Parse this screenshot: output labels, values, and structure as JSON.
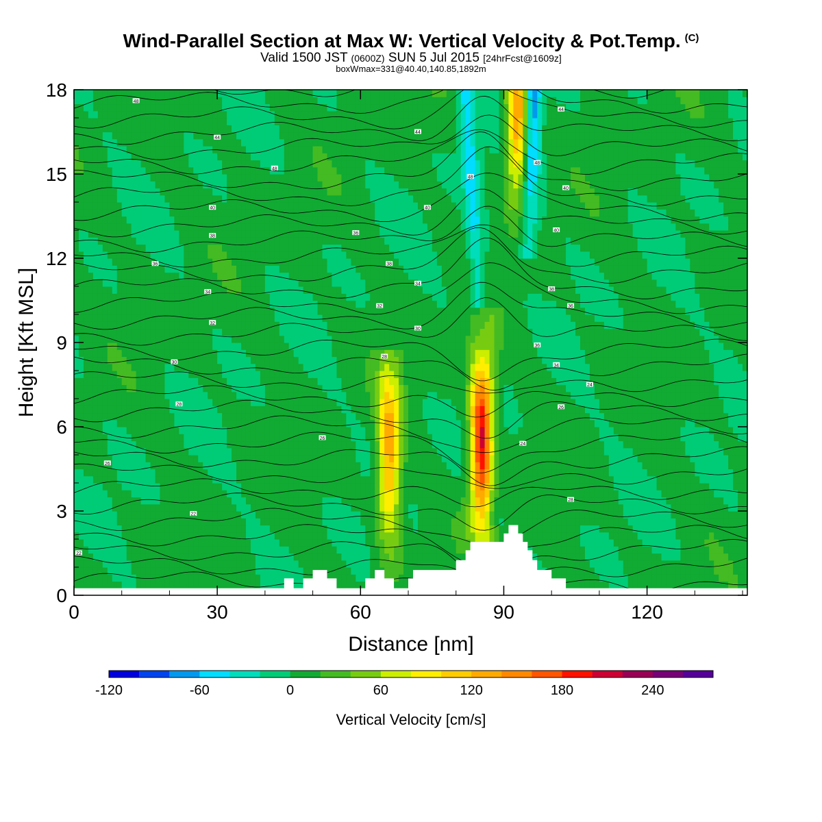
{
  "header": {
    "title": "Wind-Parallel Section at Max W: Vertical Velocity & Pot.Temp.",
    "copyright": "(C)",
    "subtitle_a": "Valid 1500 JST",
    "subtitle_b": "(0600Z)",
    "subtitle_c": "SUN 5 Jul 2015",
    "subtitle_d": "[24hrFcst@1609z]",
    "note": "boxWmax=331@40.40,140.85,1892m"
  },
  "chart_data": {
    "type": "heatmap",
    "xlabel": "Distance [nm]",
    "ylabel": "Height [Kft MSL]",
    "xlim": [
      0,
      141
    ],
    "ylim": [
      0,
      18
    ],
    "xticks": [
      0,
      30,
      60,
      90,
      120
    ],
    "yticks": [
      0,
      3,
      6,
      9,
      12,
      15,
      18
    ],
    "colorbar": {
      "label": "Vertical Velocity [cm/s]",
      "ticks": [
        -120,
        -60,
        0,
        60,
        120,
        180,
        240
      ],
      "min": -120,
      "max": 280,
      "step": 20,
      "colors": [
        "#0000dd",
        "#0044ee",
        "#0099ee",
        "#00ddff",
        "#00ddbb",
        "#00cc77",
        "#11aa33",
        "#44bb22",
        "#77cc11",
        "#ccee00",
        "#ffee00",
        "#ffcc00",
        "#ffaa00",
        "#ff8800",
        "#ff5500",
        "#ff1100",
        "#cc0033",
        "#990055",
        "#770077",
        "#550099"
      ]
    },
    "background_value": 5,
    "updrafts": [
      {
        "x": 66,
        "z_bottom": 1.0,
        "z_top": 8.0,
        "peak_z": 5.0,
        "max_w": 130
      },
      {
        "x": 85.5,
        "z_bottom": 2.0,
        "z_top": 9.5,
        "peak_z": 5.8,
        "max_w": 220
      },
      {
        "x": 93,
        "z_bottom": 12.0,
        "z_top": 18.0,
        "peak_z": 17.0,
        "max_w": 150
      }
    ],
    "downdrafts": [
      {
        "x_bottom": 88,
        "x_top": 82,
        "z_bottom": 2.5,
        "z_top": 18.0,
        "min_w": -60
      },
      {
        "x_bottom": 95,
        "x_top": 96,
        "z_bottom": 12.0,
        "z_top": 18.0,
        "min_w": -100
      }
    ],
    "theta_contour_labels": [
      {
        "x": 13,
        "z": 17.6,
        "label": "48"
      },
      {
        "x": 30,
        "z": 16.3,
        "label": "44"
      },
      {
        "x": 42,
        "z": 15.2,
        "label": "48"
      },
      {
        "x": 72,
        "z": 16.5,
        "label": "44"
      },
      {
        "x": 102,
        "z": 17.3,
        "label": "44"
      },
      {
        "x": 29,
        "z": 13.8,
        "label": "40"
      },
      {
        "x": 74,
        "z": 13.8,
        "label": "40"
      },
      {
        "x": 29,
        "z": 12.8,
        "label": "38"
      },
      {
        "x": 59,
        "z": 12.9,
        "label": "36"
      },
      {
        "x": 17,
        "z": 11.8,
        "label": "36"
      },
      {
        "x": 66,
        "z": 11.8,
        "label": "38"
      },
      {
        "x": 28,
        "z": 10.8,
        "label": "34"
      },
      {
        "x": 72,
        "z": 11.1,
        "label": "34"
      },
      {
        "x": 64,
        "z": 10.3,
        "label": "32"
      },
      {
        "x": 29,
        "z": 9.7,
        "label": "32"
      },
      {
        "x": 72,
        "z": 9.5,
        "label": "30"
      },
      {
        "x": 21,
        "z": 8.3,
        "label": "30"
      },
      {
        "x": 65,
        "z": 8.5,
        "label": "28"
      },
      {
        "x": 22,
        "z": 6.8,
        "label": "28"
      },
      {
        "x": 52,
        "z": 5.6,
        "label": "26"
      },
      {
        "x": 7,
        "z": 4.7,
        "label": "26"
      },
      {
        "x": 25,
        "z": 2.9,
        "label": "22"
      },
      {
        "x": 1,
        "z": 1.5,
        "label": "22"
      },
      {
        "x": 97,
        "z": 8.9,
        "label": "36"
      },
      {
        "x": 101,
        "z": 8.2,
        "label": "34"
      },
      {
        "x": 108,
        "z": 7.5,
        "label": "24"
      },
      {
        "x": 102,
        "z": 6.7,
        "label": "26"
      },
      {
        "x": 104,
        "z": 3.4,
        "label": "28"
      },
      {
        "x": 104,
        "z": 10.3,
        "label": "36"
      },
      {
        "x": 100,
        "z": 10.9,
        "label": "38"
      },
      {
        "x": 101,
        "z": 13.0,
        "label": "40"
      },
      {
        "x": 103,
        "z": 14.5,
        "label": "40"
      },
      {
        "x": 97,
        "z": 15.4,
        "label": "48"
      },
      {
        "x": 83,
        "z": 14.9,
        "label": "48"
      },
      {
        "x": 94,
        "z": 5.4,
        "label": "24"
      }
    ],
    "terrain": [
      [
        0,
        0.25
      ],
      [
        44,
        0.25
      ],
      [
        44,
        0.6
      ],
      [
        46,
        0.6
      ],
      [
        46,
        0.25
      ],
      [
        48,
        0.25
      ],
      [
        48,
        0.6
      ],
      [
        50,
        0.6
      ],
      [
        50,
        0.9
      ],
      [
        53,
        0.9
      ],
      [
        53,
        0.6
      ],
      [
        55,
        0.6
      ],
      [
        55,
        0.25
      ],
      [
        61,
        0.25
      ],
      [
        61,
        0.6
      ],
      [
        63,
        0.6
      ],
      [
        63,
        0.9
      ],
      [
        65,
        0.9
      ],
      [
        65,
        0.6
      ],
      [
        67,
        0.6
      ],
      [
        67,
        0.25
      ],
      [
        70,
        0.25
      ],
      [
        70,
        0.6
      ],
      [
        71,
        0.6
      ],
      [
        71,
        0.9
      ],
      [
        80,
        0.9
      ],
      [
        80,
        1.25
      ],
      [
        82,
        1.25
      ],
      [
        82,
        1.6
      ],
      [
        83,
        1.6
      ],
      [
        83,
        1.9
      ],
      [
        90,
        1.9
      ],
      [
        90,
        2.2
      ],
      [
        91,
        2.2
      ],
      [
        91,
        2.5
      ],
      [
        93,
        2.5
      ],
      [
        93,
        2.2
      ],
      [
        94,
        2.2
      ],
      [
        94,
        1.9
      ],
      [
        95,
        1.9
      ],
      [
        95,
        1.6
      ],
      [
        96,
        1.6
      ],
      [
        96,
        1.25
      ],
      [
        97,
        1.25
      ],
      [
        97,
        0.9
      ],
      [
        100,
        0.9
      ],
      [
        100,
        0.6
      ],
      [
        103,
        0.6
      ],
      [
        103,
        0.25
      ],
      [
        141,
        0.25
      ]
    ]
  }
}
